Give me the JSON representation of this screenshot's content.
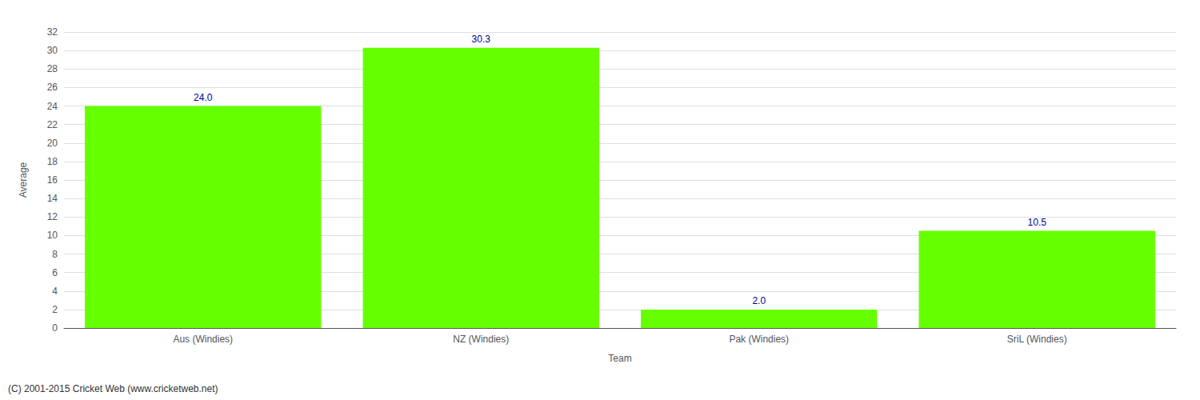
{
  "chart_data": {
    "type": "bar",
    "categories": [
      "Aus (Windies)",
      "NZ (Windies)",
      "Pak (Windies)",
      "SriL (Windies)"
    ],
    "values": [
      24.0,
      30.3,
      2.0,
      10.5
    ],
    "value_labels": [
      "24.0",
      "30.3",
      "2.0",
      "10.5"
    ],
    "data_labels": true,
    "color": "#66ff00",
    "xlabel": "Team",
    "ylabel": "Average",
    "ylim": [
      0,
      32
    ],
    "yticks": [
      0,
      2,
      4,
      6,
      8,
      10,
      12,
      14,
      16,
      18,
      20,
      22,
      24,
      26,
      28,
      30,
      32
    ],
    "grid": true,
    "annotations": [
      "(C) 2001-2015 Cricket Web (www.cricketweb.net)"
    ]
  }
}
